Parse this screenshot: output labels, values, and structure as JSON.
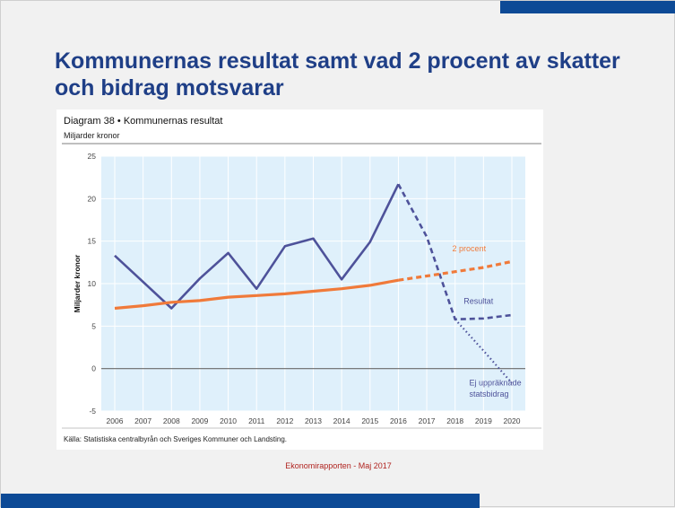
{
  "slide": {
    "title": "Kommunernas resultat samt vad 2 procent av skatter och bidrag motsvarar",
    "footer": "Ekonomirapporten - Maj 2017",
    "accent_color": "#0d4a96",
    "title_color": "#1f3f87"
  },
  "figure": {
    "title": "Diagram 38 • Kommunernas resultat",
    "subtitle": "Miljarder kronor",
    "source": "Källa: Statistiska centralbyrån och Sveriges Kommuner och Landsting."
  },
  "chart_data": {
    "type": "line",
    "title": "Diagram 38 • Kommunernas resultat",
    "subtitle": "Miljarder kronor",
    "ylabel": "Miljarder kronor",
    "xlabel": "",
    "x": [
      2006,
      2007,
      2008,
      2009,
      2010,
      2011,
      2012,
      2013,
      2014,
      2015,
      2016,
      2017,
      2018,
      2019,
      2020
    ],
    "x_ticks": [
      "2006",
      "2007",
      "2008",
      "2009",
      "2010",
      "2011",
      "2012",
      "2013",
      "2014",
      "2015",
      "2016",
      "2017",
      "2018",
      "2019",
      "2020"
    ],
    "ylim": [
      -5,
      25
    ],
    "y_ticks": [
      -5,
      0,
      5,
      10,
      15,
      20,
      25
    ],
    "grid": true,
    "plot_background": "#dff0fb",
    "series": [
      {
        "name": "Resultat",
        "color": "#4e529a",
        "style": "solid",
        "x": [
          2006,
          2007,
          2008,
          2009,
          2010,
          2011,
          2012,
          2013,
          2014,
          2015,
          2016
        ],
        "values": [
          13.3,
          10.2,
          7.1,
          10.6,
          13.6,
          9.4,
          14.4,
          15.3,
          10.5,
          14.9,
          21.7
        ]
      },
      {
        "name": "Resultat",
        "color": "#4e529a",
        "style": "dashed",
        "x": [
          2016,
          2017,
          2018,
          2019,
          2020
        ],
        "values": [
          21.7,
          15.5,
          5.8,
          5.9,
          6.3
        ]
      },
      {
        "name": "Ej uppräknade statsbidrag",
        "color": "#4e529a",
        "style": "dotted",
        "x": [
          2018,
          2019,
          2020
        ],
        "values": [
          5.8,
          2.1,
          -1.7
        ]
      },
      {
        "name": "2 procent",
        "color": "#f07a3a",
        "style": "solid",
        "x": [
          2006,
          2007,
          2008,
          2009,
          2010,
          2011,
          2012,
          2013,
          2014,
          2015,
          2016
        ],
        "values": [
          7.1,
          7.4,
          7.8,
          8.0,
          8.4,
          8.6,
          8.8,
          9.1,
          9.4,
          9.8,
          10.4
        ]
      },
      {
        "name": "2 procent",
        "color": "#f07a3a",
        "style": "dashed",
        "x": [
          2016,
          2017,
          2018,
          2019,
          2020
        ],
        "values": [
          10.4,
          10.9,
          11.4,
          11.9,
          12.6
        ]
      }
    ],
    "annotations": [
      {
        "text": "2 procent",
        "color": "#f07a3a",
        "x": 2017.9,
        "y": 13.8
      },
      {
        "text": "Resultat",
        "color": "#4e529a",
        "x": 2018.3,
        "y": 7.6
      },
      {
        "text": "Ej uppräknade",
        "color": "#4e529a",
        "x": 2018.5,
        "y": -2.0
      },
      {
        "text": "statsbidrag",
        "color": "#4e529a",
        "x": 2018.5,
        "y": -3.3
      }
    ]
  }
}
